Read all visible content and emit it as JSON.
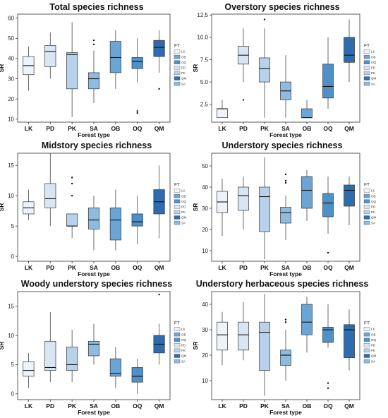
{
  "colors": {
    "LK": "#eef3fa",
    "PD": "#d8e6f4",
    "PK": "#b7d2ea",
    "SA": "#8fbbe0",
    "OB": "#6aa5d6",
    "OQ": "#4f90c8",
    "QM": "#2f6cad"
  },
  "chart_data": [
    {
      "type": "box",
      "title": "Total species richness",
      "xlabel": "Forest type",
      "ylabel": "SR",
      "ylim": [
        8.5,
        62
      ],
      "yticks": [
        10,
        20,
        30,
        40,
        50,
        60
      ],
      "categories": [
        "LK",
        "PD",
        "PK",
        "SA",
        "OB",
        "OQ",
        "QM"
      ],
      "boxes": [
        {
          "min": 24,
          "q1": 32,
          "median": 36.5,
          "q3": 41,
          "max": 46,
          "outliers": []
        },
        {
          "min": 30,
          "q1": 36,
          "median": 43.5,
          "q3": 46.5,
          "max": 53,
          "outliers": []
        },
        {
          "min": 11,
          "q1": 25,
          "median": 42,
          "q3": 43,
          "max": 58,
          "outliers": []
        },
        {
          "min": 18,
          "q1": 25,
          "median": 30,
          "q3": 33,
          "max": 44,
          "outliers": [
            47,
            49
          ]
        },
        {
          "min": 25,
          "q1": 33,
          "median": 40.5,
          "q3": 48.5,
          "max": 54,
          "outliers": []
        },
        {
          "min": 28,
          "q1": 35,
          "median": 38.5,
          "q3": 40.5,
          "max": 50,
          "outliers": [
            13,
            14
          ]
        },
        {
          "min": 33,
          "q1": 41,
          "median": 45.5,
          "q3": 49,
          "max": 54,
          "outliers": [
            25
          ]
        }
      ],
      "legend": {
        "title": "FT",
        "entries": [
          "LK",
          "OB",
          "OQ",
          "PD",
          "PK",
          "QM",
          "SA"
        ]
      }
    },
    {
      "type": "box",
      "title": "Overstory species richness",
      "xlabel": "Forest type",
      "ylabel": "SR",
      "ylim": [
        0.5,
        12.6
      ],
      "yticks": [
        2.5,
        5.0,
        7.5,
        10.0,
        12.5
      ],
      "categories": [
        "LK",
        "PD",
        "PK",
        "SA",
        "OB",
        "OQ",
        "QM"
      ],
      "boxes": [
        {
          "min": 1,
          "q1": 1,
          "median": 2,
          "q3": 2,
          "max": 3,
          "outliers": []
        },
        {
          "min": 5,
          "q1": 7,
          "median": 8,
          "q3": 9,
          "max": 11,
          "outliers": [
            3
          ]
        },
        {
          "min": 1,
          "q1": 5,
          "median": 6.5,
          "q3": 7.7,
          "max": 11,
          "outliers": [
            12
          ]
        },
        {
          "min": 1,
          "q1": 3,
          "median": 4,
          "q3": 5,
          "max": 8,
          "outliers": []
        },
        {
          "min": 1,
          "q1": 1,
          "median": 1,
          "q3": 2,
          "max": 3,
          "outliers": []
        },
        {
          "min": 2,
          "q1": 3.2,
          "median": 4.5,
          "q3": 7,
          "max": 10,
          "outliers": []
        },
        {
          "min": 5,
          "q1": 7.2,
          "median": 8,
          "q3": 10,
          "max": 12,
          "outliers": []
        }
      ],
      "legend": {
        "title": "FT",
        "entries": [
          "LK",
          "OB",
          "OQ",
          "PD",
          "PK",
          "QM",
          "SA"
        ]
      }
    },
    {
      "type": "box",
      "title": "Midstory species richness",
      "xlabel": "Forest type",
      "ylabel": "SR",
      "ylim": [
        -0.8,
        17
      ],
      "yticks": [
        0,
        5,
        10,
        15
      ],
      "categories": [
        "LK",
        "PD",
        "PK",
        "SA",
        "OB",
        "OQ",
        "QM"
      ],
      "boxes": [
        {
          "min": 6,
          "q1": 7,
          "median": 8,
          "q3": 9,
          "max": 11,
          "outliers": []
        },
        {
          "min": 5,
          "q1": 8,
          "median": 9.5,
          "q3": 12,
          "max": 17,
          "outliers": []
        },
        {
          "min": 3,
          "q1": 5,
          "median": 5,
          "q3": 7,
          "max": 7,
          "outliers": [
            10,
            12,
            13
          ]
        },
        {
          "min": 1,
          "q1": 4.5,
          "median": 6,
          "q3": 8,
          "max": 10,
          "outliers": []
        },
        {
          "min": 1,
          "q1": 2.7,
          "median": 6,
          "q3": 8,
          "max": 11,
          "outliers": []
        },
        {
          "min": 2,
          "q1": 5,
          "median": 5.7,
          "q3": 7,
          "max": 10,
          "outliers": []
        },
        {
          "min": 3,
          "q1": 7,
          "median": 9,
          "q3": 11,
          "max": 15,
          "outliers": []
        }
      ],
      "legend": {
        "title": "FT",
        "entries": [
          "LK",
          "OB",
          "OQ",
          "PD",
          "PK",
          "QM",
          "SA"
        ]
      }
    },
    {
      "type": "box",
      "title": "Understory species richness",
      "xlabel": "Forest type",
      "ylabel": "SR",
      "ylim": [
        5,
        56
      ],
      "yticks": [
        10,
        20,
        30,
        40,
        50
      ],
      "categories": [
        "LK",
        "PD",
        "PK",
        "SA",
        "OB",
        "OQ",
        "QM"
      ],
      "boxes": [
        {
          "min": 17,
          "q1": 28,
          "median": 33,
          "q3": 38,
          "max": 44,
          "outliers": []
        },
        {
          "min": 20,
          "q1": 29,
          "median": 36,
          "q3": 40,
          "max": 45,
          "outliers": []
        },
        {
          "min": 6,
          "q1": 19,
          "median": 35.5,
          "q3": 40,
          "max": 54,
          "outliers": []
        },
        {
          "min": 15,
          "q1": 23,
          "median": 28,
          "q3": 30.5,
          "max": 36,
          "outliers": [
            42,
            43,
            46
          ]
        },
        {
          "min": 24,
          "q1": 30,
          "median": 38.5,
          "q3": 45,
          "max": 48,
          "outliers": []
        },
        {
          "min": 18,
          "q1": 26,
          "median": 32.5,
          "q3": 37,
          "max": 45,
          "outliers": [
            9
          ]
        },
        {
          "min": 22,
          "q1": 31,
          "median": 38.5,
          "q3": 41,
          "max": 45,
          "outliers": []
        }
      ],
      "legend": {
        "title": "FT",
        "entries": [
          "LK",
          "OB",
          "OQ",
          "PD",
          "PK",
          "QM",
          "SA"
        ]
      }
    },
    {
      "type": "box",
      "title": "Woody understory species richness",
      "xlabel": "Forest type",
      "ylabel": "SR",
      "ylim": [
        -1,
        17.5
      ],
      "yticks": [
        0,
        5,
        10,
        15
      ],
      "categories": [
        "LK",
        "PD",
        "PK",
        "SA",
        "OB",
        "OQ",
        "QM"
      ],
      "boxes": [
        {
          "min": 1,
          "q1": 3,
          "median": 4,
          "q3": 5.5,
          "max": 7,
          "outliers": []
        },
        {
          "min": 2,
          "q1": 4,
          "median": 4.5,
          "q3": 9,
          "max": 14,
          "outliers": []
        },
        {
          "min": 2,
          "q1": 4,
          "median": 5,
          "q3": 8,
          "max": 11,
          "outliers": []
        },
        {
          "min": 5,
          "q1": 6.5,
          "median": 8.5,
          "q3": 9,
          "max": 12,
          "outliers": []
        },
        {
          "min": 1,
          "q1": 3,
          "median": 3.5,
          "q3": 6,
          "max": 8,
          "outliers": []
        },
        {
          "min": 0,
          "q1": 2,
          "median": 3,
          "q3": 4.5,
          "max": 6,
          "outliers": []
        },
        {
          "min": 5,
          "q1": 7,
          "median": 8.5,
          "q3": 10,
          "max": 12,
          "outliers": [
            17
          ]
        }
      ],
      "legend": {
        "title": "FT",
        "entries": [
          "LK",
          "OB",
          "OQ",
          "PD",
          "PK",
          "QM",
          "SA"
        ]
      }
    },
    {
      "type": "box",
      "title": "Understory herbaceous species richness",
      "xlabel": "Forest type",
      "ylabel": "SR",
      "ylim": [
        2.5,
        45
      ],
      "yticks": [
        10,
        20,
        30,
        40
      ],
      "categories": [
        "LK",
        "PD",
        "PK",
        "SA",
        "OB",
        "OQ",
        "QM"
      ],
      "boxes": [
        {
          "min": 16,
          "q1": 22,
          "median": 28,
          "q3": 33,
          "max": 37,
          "outliers": []
        },
        {
          "min": 18,
          "q1": 22,
          "median": 28,
          "q3": 33,
          "max": 41,
          "outliers": []
        },
        {
          "min": 4,
          "q1": 14,
          "median": 29,
          "q3": 33,
          "max": 44,
          "outliers": []
        },
        {
          "min": 10,
          "q1": 16,
          "median": 20,
          "q3": 22,
          "max": 30,
          "outliers": [
            33,
            34
          ]
        },
        {
          "min": 21,
          "q1": 28,
          "median": 33,
          "q3": 40,
          "max": 43,
          "outliers": []
        },
        {
          "min": 23,
          "q1": 25,
          "median": 30,
          "q3": 31,
          "max": 40,
          "outliers": [
            7,
            9
          ]
        },
        {
          "min": 14,
          "q1": 19,
          "median": 30,
          "q3": 32,
          "max": 38,
          "outliers": []
        }
      ],
      "legend": {
        "title": "FT",
        "entries": [
          "LK",
          "OB",
          "OQ",
          "PD",
          "PK",
          "QM",
          "SA"
        ]
      }
    }
  ]
}
